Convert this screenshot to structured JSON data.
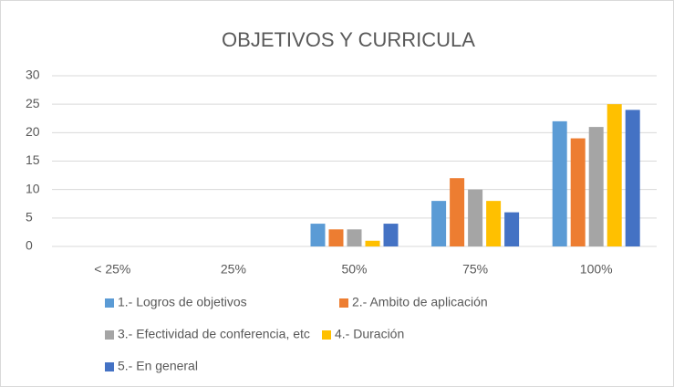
{
  "chart_data": {
    "type": "bar",
    "title": "OBJETIVOS Y CURRICULA",
    "categories": [
      "< 25%",
      "25%",
      "50%",
      "75%",
      "100%"
    ],
    "series": [
      {
        "name": "1.- Logros de objetivos",
        "color": "#5b9bd5",
        "values": [
          0,
          0,
          4,
          8,
          22
        ]
      },
      {
        "name": "2.- Ambito de aplicación",
        "color": "#ed7d31",
        "values": [
          0,
          0,
          3,
          12,
          19
        ]
      },
      {
        "name": "3.- Efectividad de conferencia, etc",
        "color": "#a5a5a5",
        "values": [
          0,
          0,
          3,
          10,
          21
        ]
      },
      {
        "name": "4.- Duración",
        "color": "#ffc000",
        "values": [
          0,
          0,
          1,
          8,
          25
        ]
      },
      {
        "name": "5.- En general",
        "color": "#4472c4",
        "values": [
          0,
          0,
          4,
          6,
          24
        ]
      }
    ],
    "ylim": [
      0,
      30
    ],
    "yticks": [
      0,
      5,
      10,
      15,
      20,
      25,
      30
    ],
    "grid": true,
    "legend": "bottom"
  }
}
